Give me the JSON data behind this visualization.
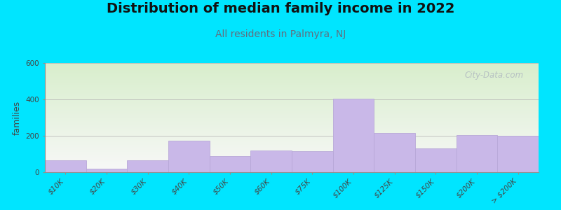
{
  "title": "Distribution of median family income in 2022",
  "subtitle": "All residents in Palmyra, NJ",
  "ylabel": "families",
  "categories": [
    "$10K",
    "$20K",
    "$30K",
    "$40K",
    "$50K",
    "$60K",
    "$75K",
    "$100K",
    "$125K",
    "$150K",
    "$200K",
    "> $200K"
  ],
  "values": [
    65,
    20,
    65,
    175,
    90,
    120,
    115,
    405,
    215,
    130,
    205,
    200
  ],
  "bar_color": "#c9b8e8",
  "bar_edgecolor": "#b8a8d8",
  "background_outer": "#00e5ff",
  "background_plot_top_left": "#d8eecc",
  "background_plot_bottom_right": "#f8f8f8",
  "title_fontsize": 14,
  "subtitle_fontsize": 10,
  "ylabel_fontsize": 9,
  "tick_fontsize": 7.5,
  "ylim": [
    0,
    600
  ],
  "yticks": [
    0,
    200,
    400,
    600
  ],
  "watermark_text": "City-Data.com",
  "watermark_color": "#b0b8c0",
  "subtitle_color": "#607080"
}
